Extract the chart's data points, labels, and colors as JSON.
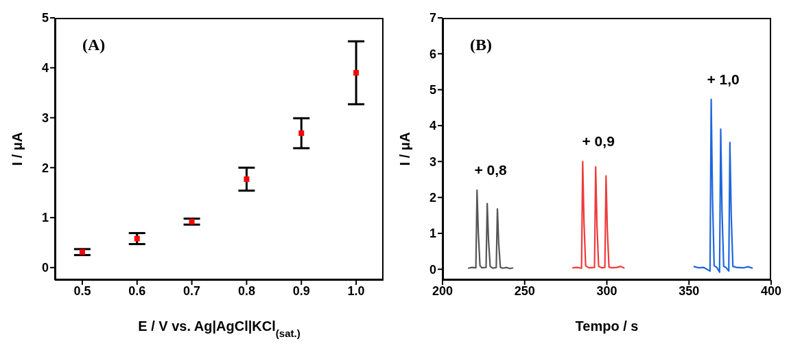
{
  "chart_data": [
    {
      "type": "scatter",
      "title": "(A)",
      "xlabel": "E / V vs. Ag|AgCl|KCl$_{(sat.)}$",
      "ylabel": "I / μA",
      "marker": "square",
      "color": "#ff0000",
      "x": [
        0.5,
        0.6,
        0.7,
        0.8,
        0.9,
        1.0
      ],
      "values": [
        0.31,
        0.58,
        0.92,
        1.77,
        2.69,
        3.9
      ],
      "errors": [
        0.06,
        0.11,
        0.06,
        0.23,
        0.3,
        0.63
      ],
      "xlim": [
        0.45,
        1.05
      ],
      "xticks": [
        0.5,
        0.6,
        0.7,
        0.8,
        0.9,
        {
          "value": 1.0,
          "label": "1.0"
        }
      ],
      "ylim": [
        -0.25,
        5
      ],
      "yticks": [
        0,
        1,
        2,
        3,
        4,
        5
      ]
    },
    {
      "type": "line",
      "title": "(B)",
      "xlabel": "Tempo / s",
      "ylabel": "I / μA",
      "line_style": "solid",
      "marker": "none",
      "series": [
        {
          "name": "+ 0,8",
          "color": "#555555",
          "x": [
            215.5,
            218,
            220.3,
            221,
            221.8,
            222.8,
            224,
            226.5,
            227.2,
            228,
            229,
            230.5,
            232.7,
            233.4,
            234.2,
            235.2,
            236.5,
            239,
            241,
            243
          ],
          "values": [
            0.03,
            0.05,
            0.04,
            2.2,
            1.0,
            0.1,
            0.04,
            0.05,
            1.83,
            0.8,
            0.08,
            0.03,
            0.05,
            1.68,
            0.7,
            0.06,
            0.03,
            0.05,
            0.02,
            0.04
          ]
        },
        {
          "name": "+ 0,9",
          "color": "#ee3b3b",
          "x": [
            279,
            282,
            284.6,
            285.3,
            286.1,
            287.1,
            289,
            292.5,
            293.2,
            294,
            295,
            297,
            298.8,
            299.5,
            300.3,
            301.3,
            303,
            306,
            308.5,
            310.7
          ],
          "values": [
            0.04,
            0.05,
            0.03,
            3.0,
            1.3,
            0.1,
            0.04,
            0.05,
            2.85,
            1.2,
            0.08,
            0.04,
            0.05,
            2.6,
            1.1,
            0.06,
            0.04,
            0.05,
            0.08,
            0.03
          ]
        },
        {
          "name": "+ 1,0",
          "color": "#1f66dd",
          "x": [
            352.8,
            356,
            359,
            362.8,
            363.5,
            364.3,
            365.3,
            367,
            368.6,
            369.3,
            370.1,
            371.1,
            372.5,
            374.2,
            374.9,
            375.7,
            376.7,
            379,
            383,
            386,
            388.8
          ],
          "values": [
            0.08,
            0.04,
            0.05,
            -0.05,
            4.73,
            2.0,
            0.1,
            0.05,
            -0.08,
            3.9,
            1.6,
            0.08,
            0.05,
            -0.05,
            3.53,
            1.5,
            0.08,
            0.05,
            0.04,
            0.07,
            0.03
          ]
        }
      ],
      "xlim": [
        200,
        400
      ],
      "xticks": [
        200,
        250,
        300,
        350,
        400
      ],
      "ylim": [
        -0.3,
        7
      ],
      "yticks": [
        0,
        1,
        2,
        3,
        4,
        5,
        6,
        7
      ]
    }
  ]
}
